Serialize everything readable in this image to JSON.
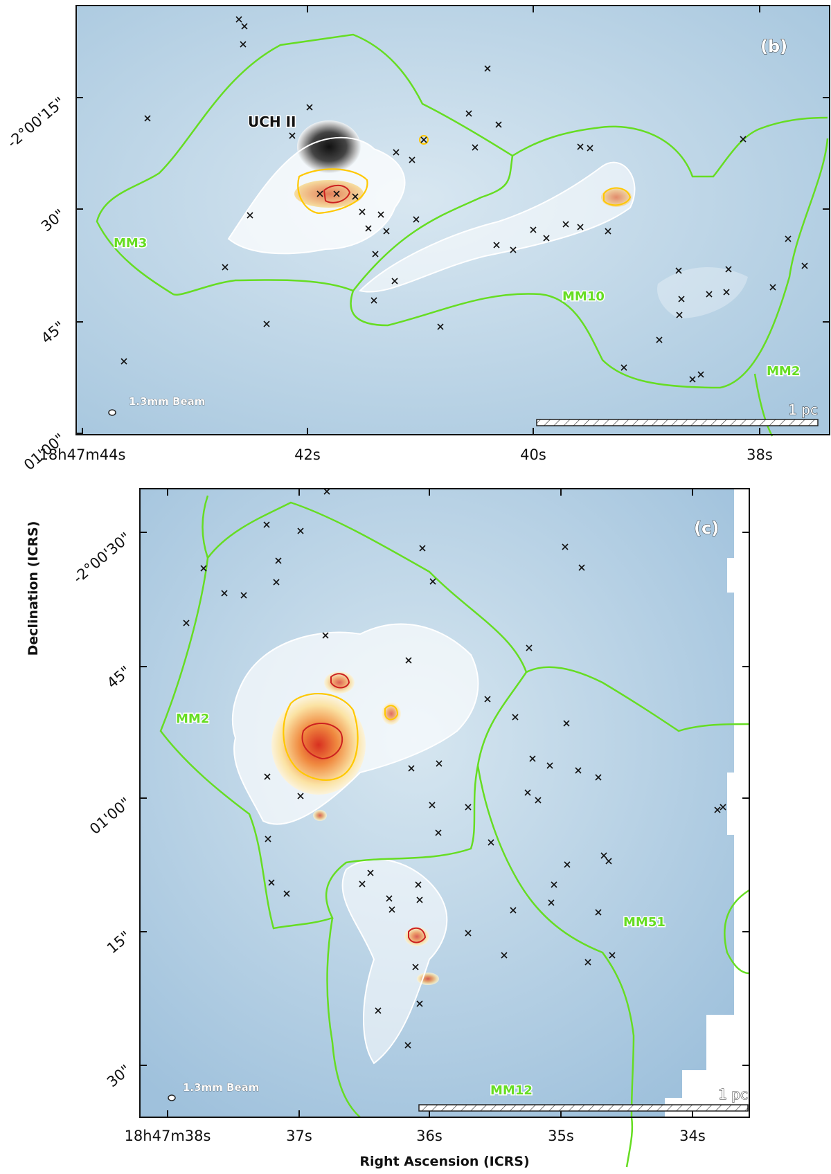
{
  "panel_b": {
    "tag": "(b)",
    "source_label": "UCH II",
    "regions": [
      "MM3",
      "MM10",
      "MM2"
    ],
    "beam_label": "1.3mm Beam",
    "scale_label": "1 pc",
    "dec_ticks": [
      "-2°00'15\"",
      "30\"",
      "45\"",
      "01'00\""
    ],
    "ra_ticks": [
      "18h47m44s",
      "42s",
      "40s",
      "38s"
    ]
  },
  "panel_c": {
    "tag": "(c)",
    "regions": [
      "MM2",
      "MM51",
      "MM12"
    ],
    "beam_label": "1.3mm Beam",
    "scale_label": "1 pc",
    "dec_ticks": [
      "-2°00'30\"",
      "45\"",
      "01'00\"",
      "15\"",
      "30\""
    ],
    "ra_ticks": [
      "18h47m38s",
      "37s",
      "36s",
      "35s",
      "34s"
    ]
  },
  "axes": {
    "xlabel": "Right Ascension (ICRS)",
    "ylabel": "Declination (ICRS)"
  },
  "colors": {
    "background_map": "#b9d3e6",
    "region_outline": "#66dd22",
    "contour_low": "#ffffff",
    "contour_mid": "#ffc800",
    "contour_high": "#cc2020"
  }
}
